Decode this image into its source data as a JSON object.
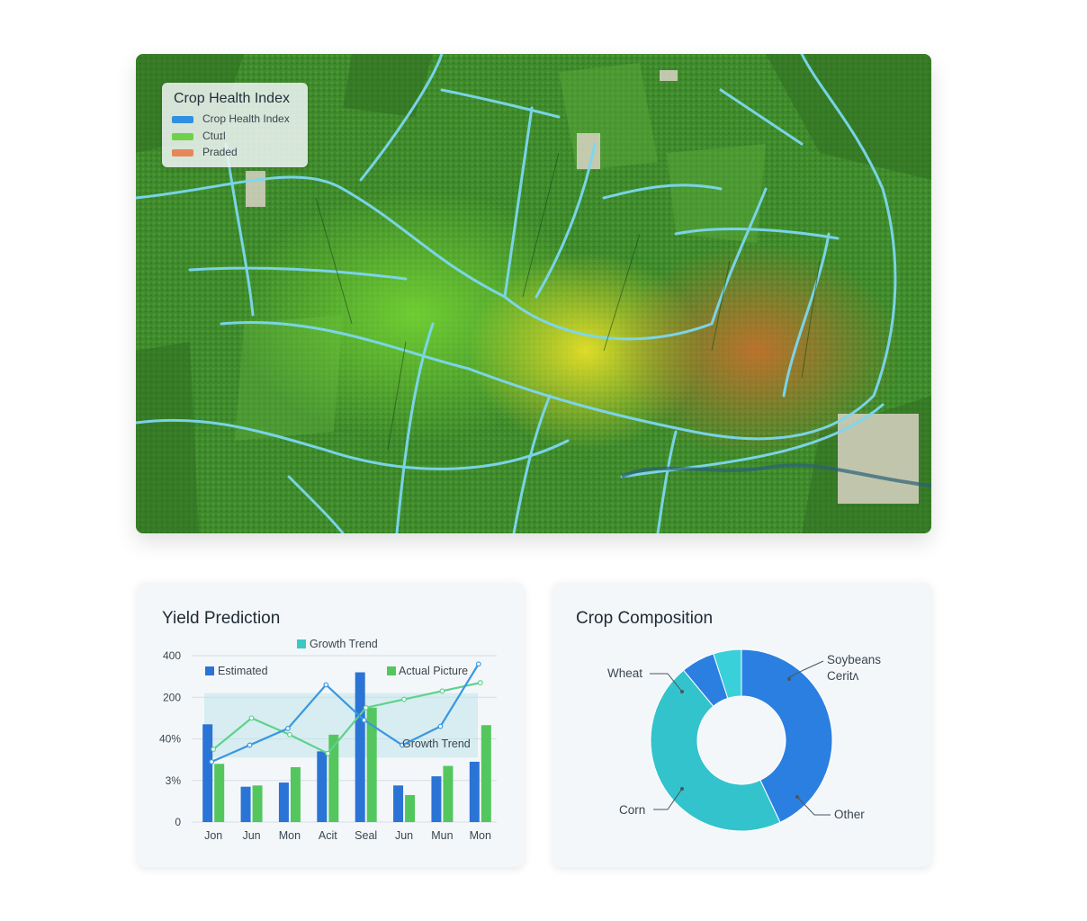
{
  "colors": {
    "estimated": "#2a74d6",
    "actual": "#53c75e",
    "trend": "#3cc9c4",
    "line_blue": "#3a97e0",
    "donut_blue": "#2b7fe0",
    "donut_teal": "#33c3cc",
    "donut_cyan": "#3ad0da"
  },
  "map": {
    "legend": {
      "title": "Crop Health Index",
      "items": [
        {
          "label": "Crop Health Index",
          "color": "#2f8fe0"
        },
        {
          "label": "Ctuɪl",
          "color": "#6fd14a"
        },
        {
          "label": "Praded",
          "color": "#e6875a"
        }
      ]
    }
  },
  "yield_panel": {
    "title": "Yield Prediction"
  },
  "composition_panel": {
    "title": "Crop Composition"
  },
  "chart_data": [
    {
      "type": "bar",
      "title": "Yield Prediction",
      "categories": [
        "Jon",
        "Jun",
        "Mon",
        "Acit",
        "Seal",
        "Jun",
        "Mun",
        "Mon"
      ],
      "y_tick_labels": [
        "0",
        "3%",
        "40%",
        "200",
        "400"
      ],
      "legend": {
        "trend_label": "Growth Trend",
        "estimated_label": "Estimated",
        "actual_label": "Actual Picture",
        "trend_annotation": "Growth Trend"
      },
      "series": [
        {
          "name": "Estimated",
          "kind": "bar",
          "values": [
            2.35,
            0.85,
            0.95,
            1.7,
            3.6,
            0.88,
            1.1,
            1.45
          ]
        },
        {
          "name": "Actual Picture",
          "kind": "bar",
          "values": [
            1.4,
            0.88,
            1.32,
            2.1,
            2.75,
            0.65,
            1.35,
            2.33
          ]
        },
        {
          "name": "Growth Trend",
          "kind": "line",
          "values": [
            1.75,
            2.5,
            2.1,
            1.65,
            2.75,
            2.95,
            3.15,
            3.35
          ]
        },
        {
          "name": "",
          "kind": "line",
          "values": [
            1.45,
            1.85,
            2.25,
            3.3,
            2.45,
            1.85,
            2.3,
            3.8
          ]
        }
      ],
      "ylim": [
        0,
        4
      ]
    },
    {
      "type": "pie",
      "title": "Crop Composition",
      "labels": [
        "Soybeans",
        "Ceritʌ",
        "Wheat",
        "Corn",
        "Other"
      ],
      "slices": [
        {
          "name": "Soybeans / Other",
          "value": 43
        },
        {
          "name": "Corn / Wheat",
          "value": 46
        },
        {
          "name": "",
          "value": 6
        },
        {
          "name": "",
          "value": 5
        }
      ]
    }
  ]
}
